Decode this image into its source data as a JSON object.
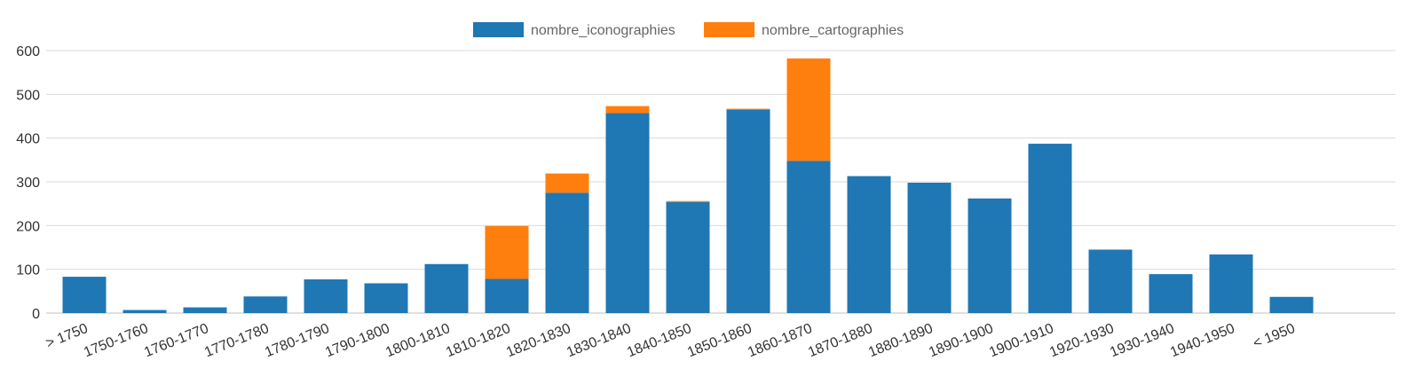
{
  "chart_data": {
    "type": "bar",
    "stacked": true,
    "title": "",
    "xlabel": "",
    "ylabel": "",
    "ylim": [
      0,
      600
    ],
    "yticks": [
      0,
      100,
      200,
      300,
      400,
      500,
      600
    ],
    "grid": true,
    "legend_position": "top-center",
    "categories": [
      "> 1750",
      "1750-1760",
      "1760-1770",
      "1770-1780",
      "1780-1790",
      "1790-1800",
      "1800-1810",
      "1810-1820",
      "1820-1830",
      "1830-1840",
      "1840-1850",
      "1850-1860",
      "1860-1870",
      "1870-1880",
      "1880-1890",
      "1890-1900",
      "1900-1910",
      "1920-1930",
      "1930-1940",
      "1940-1950",
      "< 1950"
    ],
    "series": [
      {
        "name": "nombre_iconographies",
        "color": "#1f77b4",
        "values": [
          83,
          7,
          13,
          38,
          77,
          68,
          112,
          78,
          275,
          457,
          254,
          465,
          348,
          313,
          298,
          262,
          387,
          145,
          89,
          134,
          37
        ]
      },
      {
        "name": "nombre_cartographies",
        "color": "#ff7f0e",
        "values": [
          0,
          0,
          0,
          0,
          0,
          0,
          0,
          121,
          44,
          16,
          2,
          2,
          234,
          0,
          0,
          0,
          0,
          0,
          0,
          0,
          0
        ]
      }
    ]
  }
}
